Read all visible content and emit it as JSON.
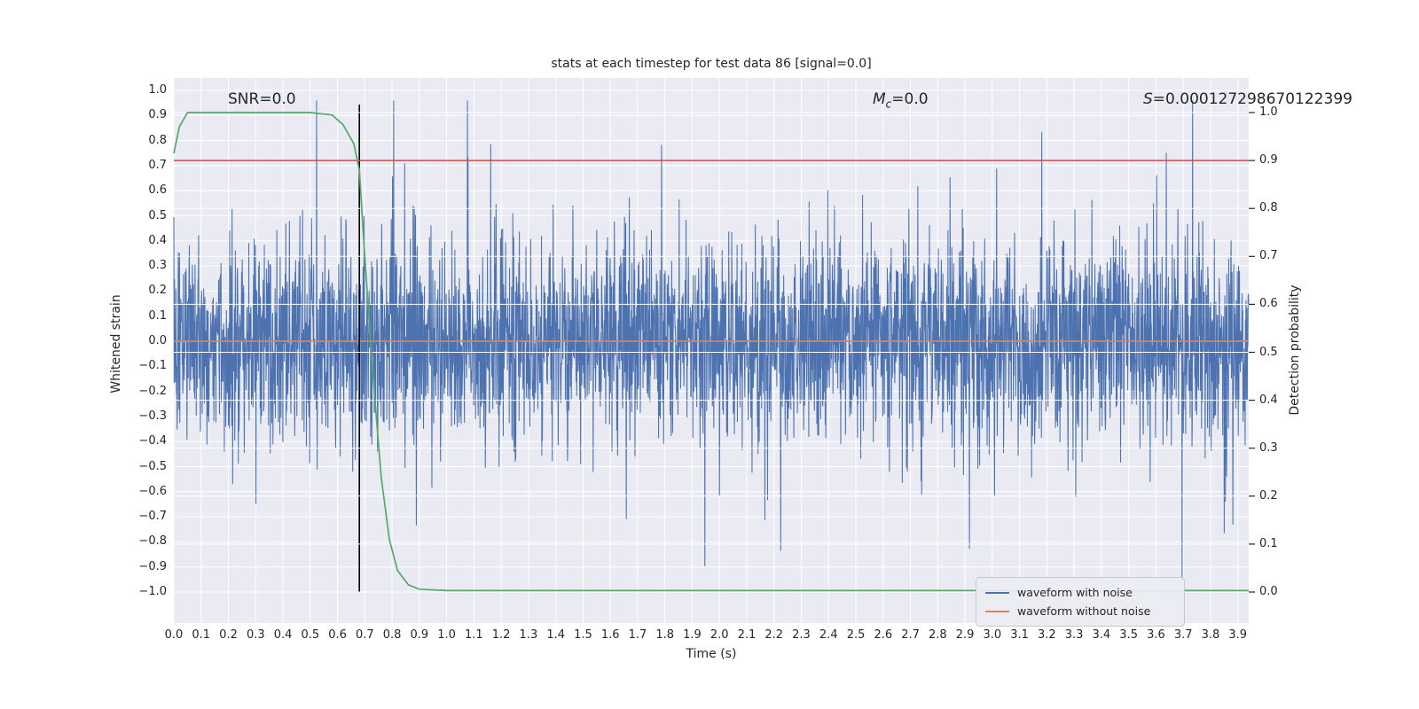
{
  "chart_data": {
    "type": "line",
    "title": "stats at each timestep for test data 86 [signal=0.0]",
    "xlabel": "Time (s)",
    "ylabel_left": "Whitened strain",
    "ylabel_right": "Detection probability",
    "xlim": [
      0,
      3.94
    ],
    "ylim_left": [
      -1.05,
      1.05
    ],
    "ylim_right": [
      0.0,
      1.0
    ],
    "grid": "on",
    "legend_position": "lower right",
    "x_ticks": [
      "0.0",
      "0.1",
      "0.2",
      "0.3",
      "0.4",
      "0.5",
      "0.6",
      "0.7",
      "0.8",
      "0.9",
      "1.0",
      "1.1",
      "1.2",
      "1.3",
      "1.4",
      "1.5",
      "1.6",
      "1.7",
      "1.8",
      "1.9",
      "2.0",
      "2.1",
      "2.2",
      "2.3",
      "2.4",
      "2.5",
      "2.6",
      "2.7",
      "2.8",
      "2.9",
      "3.0",
      "3.1",
      "3.2",
      "3.3",
      "3.4",
      "3.5",
      "3.6",
      "3.7",
      "3.8",
      "3.9"
    ],
    "y_ticks_left": [
      "1.0",
      "0.9",
      "0.8",
      "0.7",
      "0.6",
      "0.5",
      "0.4",
      "0.3",
      "0.2",
      "0.1",
      "0.0",
      "−0.1",
      "−0.2",
      "−0.3",
      "−0.4",
      "−0.5",
      "−0.6",
      "−0.7",
      "−0.8",
      "−0.9",
      "−1.0"
    ],
    "y_ticks_right": [
      "1.0",
      "0.9",
      "0.8",
      "0.7",
      "0.6",
      "0.5",
      "0.4",
      "0.3",
      "0.2",
      "0.1",
      "0.0"
    ],
    "annotations": {
      "snr": "SNR=0.0",
      "mc_symbol": "M",
      "mc_sub": "c",
      "mc_value": "=0.0",
      "s_symbol": "S",
      "s_value": "=0.000127298670122399"
    },
    "threshold_line": {
      "axis": "right",
      "value": 0.9,
      "color": "#c44e52"
    },
    "zero_line": {
      "axis": "left",
      "value": 0.0,
      "color": "#dd8452"
    },
    "event_vline": {
      "x": 0.68,
      "color": "#000000"
    },
    "detection_probability_curve": {
      "color": "#55a868",
      "points": [
        [
          0.0,
          0.915
        ],
        [
          0.02,
          0.97
        ],
        [
          0.05,
          1.0
        ],
        [
          0.5,
          1.0
        ],
        [
          0.58,
          0.995
        ],
        [
          0.62,
          0.975
        ],
        [
          0.66,
          0.935
        ],
        [
          0.68,
          0.88
        ],
        [
          0.7,
          0.7
        ],
        [
          0.73,
          0.45
        ],
        [
          0.76,
          0.24
        ],
        [
          0.79,
          0.11
        ],
        [
          0.82,
          0.045
        ],
        [
          0.86,
          0.015
        ],
        [
          0.9,
          0.006
        ],
        [
          1.0,
          0.003
        ],
        [
          3.94,
          0.003
        ]
      ]
    },
    "noise_waveform": {
      "color": "#4c72b0",
      "n": 3600,
      "visual_amplitude_std": 0.2,
      "spike_prob": 0.05,
      "spike_scale": 2.0,
      "clip": 0.96,
      "seed": 86
    },
    "legend": [
      {
        "label": "waveform with noise",
        "color": "#4c72b0"
      },
      {
        "label": "waveform without noise",
        "color": "#dd8452"
      }
    ],
    "colors": {
      "axes_bg": "#eaeaf2",
      "grid": "#ffffff",
      "text": "#262626",
      "tick": "#262626",
      "figure_bg": "#ffffff"
    }
  }
}
